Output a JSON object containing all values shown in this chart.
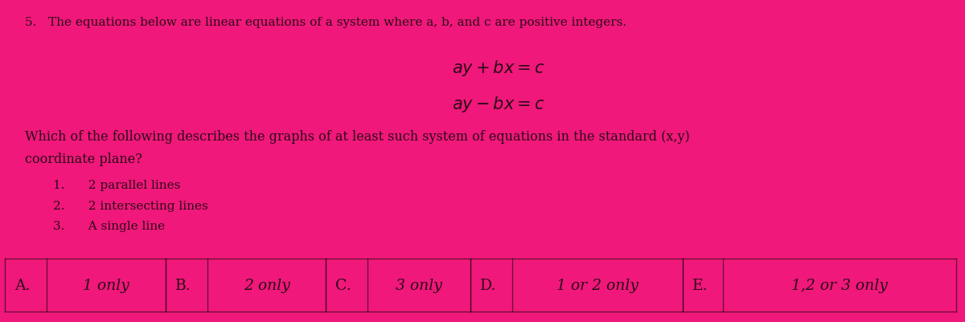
{
  "bg_color": "#f0187a",
  "text_color": "#2a0a18",
  "title": "5.   The equations below are linear equations of a system where a, b, and c are positive integers.",
  "eq1": "$ay + bx = c$",
  "eq2": "$ay - bx = c$",
  "question_line1": "Which of the following describes the graphs of at least such system of equations in the standard (x,y)",
  "question_line2": "coordinate plane?",
  "item1": "1.      2 parallel lines",
  "item2": "2.      2 intersecting lines",
  "item3": "3.      A single line",
  "answer_letters": [
    "A.",
    "B.",
    "C.",
    "D.",
    "E."
  ],
  "answer_texts": [
    "1 only",
    "2 only",
    "3 only",
    "1 or 2 only",
    "1,2 or 3 only"
  ],
  "font_title": 11.0,
  "font_eq": 15,
  "font_question": 11.5,
  "font_items": 11.0,
  "font_answers": 13.5
}
